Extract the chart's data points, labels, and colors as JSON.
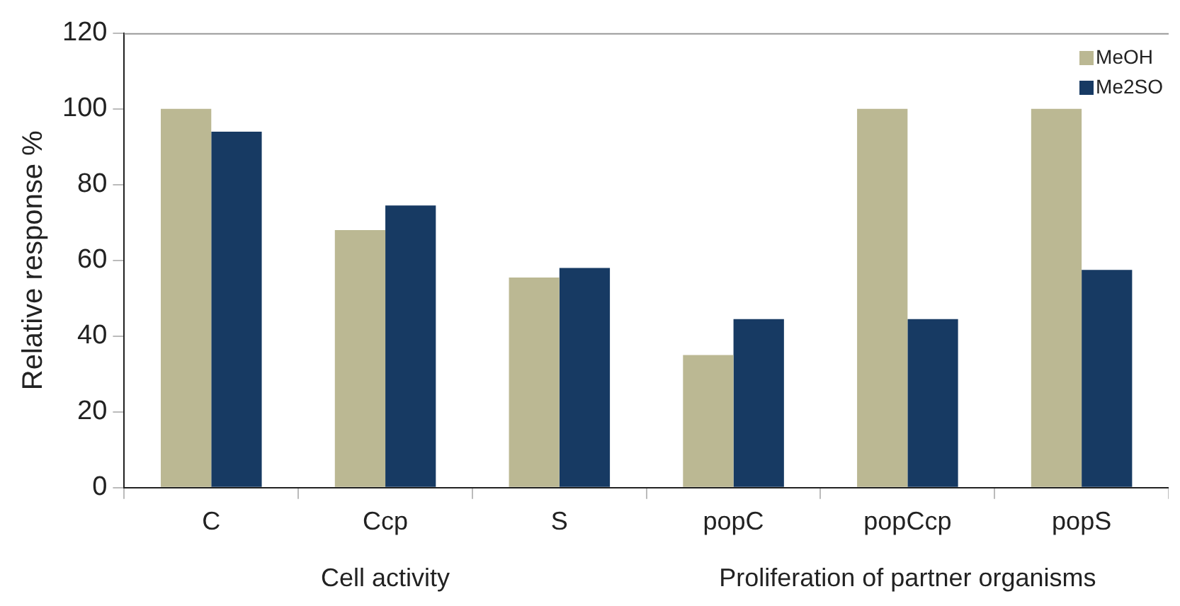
{
  "chart_data": {
    "type": "bar",
    "ylabel": "Relative response %",
    "categories": [
      "C",
      "Ccp",
      "S",
      "popC",
      "popCcp",
      "popS"
    ],
    "series": [
      {
        "name": "MeOH",
        "color": "#bbb893",
        "values": [
          100,
          68,
          55.5,
          35,
          100,
          100
        ]
      },
      {
        "name": "Me2SO",
        "color": "#173a63",
        "values": [
          94,
          74.5,
          58,
          44.5,
          44.5,
          57.5
        ]
      }
    ],
    "ylim": [
      0,
      120
    ],
    "yticks": [
      0,
      20,
      40,
      60,
      80,
      100,
      120
    ],
    "grid": false,
    "legend": "top right",
    "annotations": [
      "Cell activity",
      "Proliferation of partner organisms"
    ]
  }
}
